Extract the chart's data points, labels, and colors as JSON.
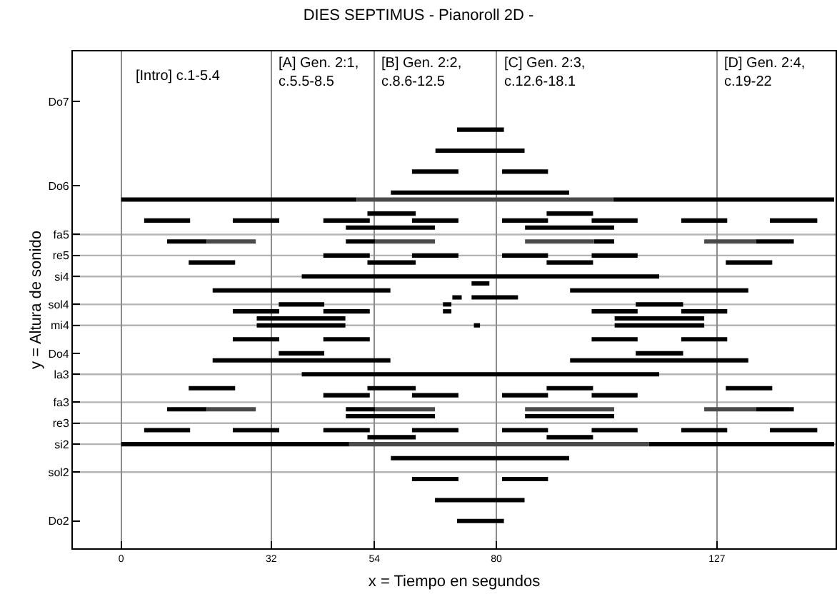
{
  "chart_data": {
    "type": "bar",
    "orientation": "horizontal",
    "title": "DIES SEPTIMUS - Pianoroll 2D -",
    "xlabel": "x = Tiempo en segundos",
    "ylabel": "y = Altura de sonido",
    "xlim": [
      -10.3,
      152.3
    ],
    "xticks": [
      0,
      32,
      54,
      80,
      127
    ],
    "categories": [
      "Do7",
      null,
      null,
      null,
      null,
      null,
      null,
      null,
      null,
      null,
      null,
      null,
      "Do6",
      null,
      null,
      null,
      null,
      null,
      null,
      "fa5",
      null,
      null,
      "re5",
      null,
      null,
      "si4",
      null,
      null,
      null,
      "sol4",
      null,
      null,
      "mi4",
      null,
      null,
      null,
      "Do4",
      null,
      null,
      "la3",
      null,
      null,
      null,
      "fa3",
      null,
      null,
      "re3",
      null,
      null,
      "si2",
      null,
      null,
      null,
      "sol2",
      null,
      null,
      null,
      null,
      null,
      null,
      "Do2"
    ],
    "grid": "x",
    "annotations": [
      "[Intro] c.1-5.4",
      "[A] Gen. 2:1,\nc.5.5-8.5",
      "[B] Gen. 2:2,\nc.8.6-12.5",
      "[C] Gen. 2:3,\nc.12.6-18.1",
      "[D] Gen. 2:4,\nc.19-22"
    ],
    "ref_lines": [
      {
        "axis": "y",
        "value": "sol2",
        "color": "#b4b4b4"
      },
      {
        "axis": "y",
        "value": "si2",
        "color": "#b4b4b4"
      },
      {
        "axis": "y",
        "value": "re3",
        "color": "#b4b4b4"
      },
      {
        "axis": "y",
        "value": "fa3",
        "color": "#b4b4b4"
      },
      {
        "axis": "y",
        "value": "la3",
        "color": "#b4b4b4"
      },
      {
        "axis": "y",
        "value": "mi4",
        "color": "#b4b4b4"
      },
      {
        "axis": "y",
        "value": "sol4",
        "color": "#b4b4b4"
      },
      {
        "axis": "y",
        "value": "si4",
        "color": "#b4b4b4"
      },
      {
        "axis": "y",
        "value": "re5",
        "color": "#b4b4b4"
      },
      {
        "axis": "y",
        "value": "fa5",
        "color": "#b4b4b4"
      }
    ],
    "series": [
      {
        "color": "#000000",
        "base": [
          null,
          null,
          null,
          null,
          71.6,
          null,
          null,
          67,
          null,
          null,
          62,
          null,
          null,
          57.5,
          0,
          null,
          52.5,
          4.9,
          47.9,
          null,
          9.8,
          null,
          43.1,
          14.4,
          null,
          38.5,
          74.7,
          19.5,
          70.6,
          33.6,
          23.8,
          28.9,
          28.9,
          null,
          23.8,
          null,
          33.6,
          19.5,
          null,
          38.5,
          null,
          14.4,
          43.1,
          null,
          9.8,
          47.9,
          null,
          4.9,
          52.5,
          0,
          null,
          57.5,
          null,
          null,
          62,
          null,
          null,
          66.9,
          null,
          null,
          71.6
        ],
        "values": [
          null,
          null,
          null,
          null,
          10,
          null,
          null,
          19,
          null,
          null,
          9.9,
          null,
          null,
          38,
          50.2,
          null,
          10.3,
          9.8,
          19,
          null,
          8.4,
          null,
          9.9,
          9.9,
          null,
          76.2,
          3.8,
          37.9,
          2,
          9.7,
          9.9,
          18.9,
          18.9,
          null,
          9.9,
          null,
          9.7,
          37.9,
          null,
          76.2,
          null,
          9.9,
          9.9,
          null,
          8.4,
          19,
          null,
          9.8,
          10.3,
          48.6,
          null,
          38,
          null,
          null,
          9.9,
          null,
          null,
          19.1,
          null,
          null,
          10
        ]
      },
      {
        "color": "#000000",
        "base": [
          null,
          null,
          null,
          null,
          null,
          null,
          null,
          null,
          null,
          null,
          81.2,
          null,
          null,
          null,
          104.9,
          null,
          90.7,
          23.8,
          86.1,
          null,
          47.9,
          null,
          62,
          52.5,
          null,
          null,
          null,
          95.7,
          74.7,
          68.6,
          43.1,
          105.2,
          75.2,
          null,
          43.1,
          null,
          109.7,
          95.7,
          null,
          null,
          null,
          52.5,
          62,
          null,
          47.9,
          86.1,
          null,
          23.8,
          90.7,
          112.5,
          null,
          null,
          null,
          null,
          81.2,
          null,
          null,
          null,
          null,
          null,
          null
        ],
        "values": [
          null,
          null,
          null,
          null,
          null,
          null,
          null,
          null,
          null,
          null,
          9.8,
          null,
          null,
          null,
          47.1,
          null,
          9.9,
          9.9,
          19,
          null,
          6.3,
          null,
          9.9,
          10.3,
          null,
          null,
          null,
          38,
          9.9,
          1.8,
          9.9,
          19.1,
          1.3,
          null,
          9.9,
          null,
          10.1,
          38,
          null,
          null,
          null,
          10.3,
          9.9,
          null,
          6.3,
          19,
          null,
          9.9,
          9.9,
          39.5,
          null,
          null,
          null,
          null,
          9.8,
          null,
          null,
          null,
          null,
          null,
          null
        ]
      },
      {
        "color": "#000000",
        "base": [
          null,
          null,
          null,
          null,
          null,
          null,
          null,
          null,
          null,
          null,
          null,
          null,
          null,
          null,
          null,
          null,
          null,
          43.1,
          null,
          null,
          100.8,
          null,
          81.2,
          90.7,
          null,
          null,
          null,
          null,
          null,
          109.7,
          68.6,
          null,
          105.2,
          null,
          100.3,
          null,
          null,
          null,
          null,
          null,
          null,
          90.7,
          81.2,
          null,
          135.3,
          null,
          null,
          43.1,
          null,
          null,
          null,
          null,
          null,
          null,
          null,
          null,
          null,
          null,
          null,
          null,
          null
        ],
        "values": [
          null,
          null,
          null,
          null,
          null,
          null,
          null,
          null,
          null,
          null,
          null,
          null,
          null,
          null,
          null,
          null,
          null,
          9.9,
          null,
          null,
          4.3,
          null,
          9.8,
          9.9,
          null,
          null,
          null,
          null,
          null,
          10.1,
          1.8,
          null,
          19.1,
          null,
          9.8,
          null,
          null,
          null,
          null,
          null,
          null,
          9.9,
          9.8,
          null,
          8.1,
          null,
          null,
          9.9,
          null,
          null,
          null,
          null,
          null,
          null,
          null,
          null,
          null,
          null,
          null,
          null,
          null
        ]
      },
      {
        "color": "#000000",
        "base": [
          null,
          null,
          null,
          null,
          null,
          null,
          null,
          null,
          null,
          null,
          null,
          null,
          null,
          null,
          null,
          null,
          null,
          62,
          null,
          null,
          135.3,
          null,
          100.3,
          128.9,
          null,
          null,
          null,
          null,
          null,
          null,
          100.3,
          null,
          null,
          null,
          119.4,
          null,
          null,
          null,
          null,
          null,
          null,
          128.9,
          100.3,
          null,
          null,
          null,
          null,
          62,
          null,
          null,
          null,
          null,
          null,
          null,
          null,
          null,
          null,
          null,
          null,
          null,
          null
        ],
        "values": [
          null,
          null,
          null,
          null,
          null,
          null,
          null,
          null,
          null,
          null,
          null,
          null,
          null,
          null,
          null,
          null,
          null,
          9.9,
          null,
          null,
          8.1,
          null,
          9.8,
          9.9,
          null,
          null,
          null,
          null,
          null,
          null,
          9.8,
          null,
          null,
          null,
          9.8,
          null,
          null,
          null,
          null,
          null,
          null,
          9.9,
          9.8,
          null,
          null,
          null,
          null,
          9.9,
          null,
          null,
          null,
          null,
          null,
          null,
          null,
          null,
          null,
          null,
          null,
          null,
          null
        ]
      },
      {
        "color": "#000000",
        "base": [
          null,
          null,
          null,
          null,
          null,
          null,
          null,
          null,
          null,
          null,
          null,
          null,
          null,
          null,
          null,
          null,
          null,
          81.2,
          null,
          null,
          null,
          null,
          null,
          null,
          null,
          null,
          null,
          null,
          null,
          null,
          119.4,
          null,
          null,
          null,
          null,
          null,
          null,
          null,
          null,
          null,
          null,
          null,
          null,
          null,
          null,
          null,
          null,
          81.2,
          null,
          null,
          null,
          null,
          null,
          null,
          null,
          null,
          null,
          null,
          null,
          null,
          null
        ],
        "values": [
          null,
          null,
          null,
          null,
          null,
          null,
          null,
          null,
          null,
          null,
          null,
          null,
          null,
          null,
          null,
          null,
          null,
          9.8,
          null,
          null,
          null,
          null,
          null,
          null,
          null,
          null,
          null,
          null,
          null,
          null,
          9.8,
          null,
          null,
          null,
          null,
          null,
          null,
          null,
          null,
          null,
          null,
          null,
          null,
          null,
          null,
          null,
          null,
          9.8,
          null,
          null,
          null,
          null,
          null,
          null,
          null,
          null,
          null,
          null,
          null,
          null,
          null
        ]
      },
      {
        "color": "#000000",
        "base": [
          null,
          null,
          null,
          null,
          null,
          null,
          null,
          null,
          null,
          null,
          null,
          null,
          null,
          null,
          null,
          null,
          null,
          100.3,
          null,
          null,
          null,
          null,
          null,
          null,
          null,
          null,
          null,
          null,
          null,
          null,
          null,
          null,
          null,
          null,
          null,
          null,
          null,
          null,
          null,
          null,
          null,
          null,
          null,
          null,
          null,
          null,
          null,
          100.3,
          null,
          null,
          null,
          null,
          null,
          null,
          null,
          null,
          null,
          null,
          null,
          null,
          null
        ],
        "values": [
          null,
          null,
          null,
          null,
          null,
          null,
          null,
          null,
          null,
          null,
          null,
          null,
          null,
          null,
          null,
          null,
          null,
          9.8,
          null,
          null,
          null,
          null,
          null,
          null,
          null,
          null,
          null,
          null,
          null,
          null,
          null,
          null,
          null,
          null,
          null,
          null,
          null,
          null,
          null,
          null,
          null,
          null,
          null,
          null,
          null,
          null,
          null,
          9.8,
          null,
          null,
          null,
          null,
          null,
          null,
          null,
          null,
          null,
          null,
          null,
          null,
          null
        ]
      },
      {
        "color": "#000000",
        "base": [
          null,
          null,
          null,
          null,
          null,
          null,
          null,
          null,
          null,
          null,
          null,
          null,
          null,
          null,
          null,
          null,
          null,
          119.4,
          null,
          null,
          null,
          null,
          null,
          null,
          null,
          null,
          null,
          null,
          null,
          null,
          null,
          null,
          null,
          null,
          null,
          null,
          null,
          null,
          null,
          null,
          null,
          null,
          null,
          null,
          null,
          null,
          null,
          119.4,
          null,
          null,
          null,
          null,
          null,
          null,
          null,
          null,
          null,
          null,
          null,
          null,
          null
        ],
        "values": [
          null,
          null,
          null,
          null,
          null,
          null,
          null,
          null,
          null,
          null,
          null,
          null,
          null,
          null,
          null,
          null,
          null,
          9.8,
          null,
          null,
          null,
          null,
          null,
          null,
          null,
          null,
          null,
          null,
          null,
          null,
          null,
          null,
          null,
          null,
          null,
          null,
          null,
          null,
          null,
          null,
          null,
          null,
          null,
          null,
          null,
          null,
          null,
          9.8,
          null,
          null,
          null,
          null,
          null,
          null,
          null,
          null,
          null,
          null,
          null,
          null,
          null
        ]
      },
      {
        "color": "#000000",
        "base": [
          null,
          null,
          null,
          null,
          null,
          null,
          null,
          null,
          null,
          null,
          null,
          null,
          null,
          null,
          null,
          null,
          null,
          138.3,
          null,
          null,
          null,
          null,
          null,
          null,
          null,
          null,
          null,
          null,
          null,
          null,
          null,
          null,
          null,
          null,
          null,
          null,
          null,
          null,
          null,
          null,
          null,
          null,
          null,
          null,
          null,
          null,
          null,
          138.3,
          null,
          null,
          null,
          null,
          null,
          null,
          null,
          null,
          null,
          null,
          null,
          null,
          null
        ],
        "values": [
          null,
          null,
          null,
          null,
          null,
          null,
          null,
          null,
          null,
          null,
          null,
          null,
          null,
          null,
          null,
          null,
          null,
          10.1,
          null,
          null,
          null,
          null,
          null,
          null,
          null,
          null,
          null,
          null,
          null,
          null,
          null,
          null,
          null,
          null,
          null,
          null,
          null,
          null,
          null,
          null,
          null,
          null,
          null,
          null,
          null,
          null,
          null,
          10.1,
          null,
          null,
          null,
          null,
          null,
          null,
          null,
          null,
          null,
          null,
          null,
          null,
          null
        ]
      },
      {
        "color": "#4a4a4a",
        "base": [
          null,
          null,
          null,
          null,
          null,
          null,
          null,
          null,
          null,
          null,
          null,
          null,
          null,
          null,
          50.2,
          null,
          null,
          null,
          null,
          null,
          18.2,
          null,
          null,
          null,
          null,
          null,
          null,
          null,
          null,
          null,
          null,
          null,
          null,
          null,
          null,
          null,
          null,
          null,
          null,
          null,
          null,
          null,
          null,
          null,
          18.2,
          null,
          null,
          null,
          null,
          48.6,
          null,
          null,
          null,
          null,
          null,
          null,
          null,
          null,
          null,
          null,
          null
        ],
        "values": [
          null,
          null,
          null,
          null,
          null,
          null,
          null,
          null,
          null,
          null,
          null,
          null,
          null,
          null,
          54.7,
          null,
          null,
          null,
          null,
          null,
          10.5,
          null,
          null,
          null,
          null,
          null,
          null,
          null,
          null,
          null,
          null,
          null,
          null,
          null,
          null,
          null,
          null,
          null,
          null,
          null,
          null,
          null,
          null,
          null,
          10.5,
          null,
          null,
          null,
          null,
          63.9,
          null,
          null,
          null,
          null,
          null,
          null,
          null,
          null,
          null,
          null,
          null
        ]
      },
      {
        "color": "#4a4a4a",
        "base": [
          null,
          null,
          null,
          null,
          null,
          null,
          null,
          null,
          null,
          null,
          null,
          null,
          null,
          null,
          null,
          null,
          null,
          null,
          null,
          null,
          54.2,
          null,
          null,
          null,
          null,
          null,
          null,
          null,
          null,
          null,
          null,
          null,
          null,
          null,
          null,
          null,
          null,
          null,
          null,
          null,
          null,
          null,
          null,
          null,
          54.2,
          null,
          null,
          null,
          null,
          null,
          null,
          null,
          null,
          null,
          null,
          null,
          null,
          null,
          null,
          null,
          null
        ],
        "values": [
          null,
          null,
          null,
          null,
          null,
          null,
          null,
          null,
          null,
          null,
          null,
          null,
          null,
          null,
          null,
          null,
          null,
          null,
          null,
          null,
          12.7,
          null,
          null,
          null,
          null,
          null,
          null,
          null,
          null,
          null,
          null,
          null,
          null,
          null,
          null,
          null,
          null,
          null,
          null,
          null,
          null,
          null,
          null,
          null,
          12.7,
          null,
          null,
          null,
          null,
          null,
          null,
          null,
          null,
          null,
          null,
          null,
          null,
          null,
          null,
          null,
          null
        ]
      },
      {
        "color": "#4a4a4a",
        "base": [
          null,
          null,
          null,
          null,
          null,
          null,
          null,
          null,
          null,
          null,
          null,
          null,
          null,
          null,
          null,
          null,
          null,
          null,
          null,
          null,
          86.1,
          null,
          null,
          null,
          null,
          null,
          null,
          null,
          null,
          null,
          null,
          null,
          null,
          null,
          null,
          null,
          null,
          null,
          null,
          null,
          null,
          null,
          null,
          null,
          86.1,
          null,
          null,
          null,
          null,
          null,
          null,
          null,
          null,
          null,
          null,
          null,
          null,
          null,
          null,
          null,
          null
        ],
        "values": [
          null,
          null,
          null,
          null,
          null,
          null,
          null,
          null,
          null,
          null,
          null,
          null,
          null,
          null,
          null,
          null,
          null,
          null,
          null,
          null,
          14.7,
          null,
          null,
          null,
          null,
          null,
          null,
          null,
          null,
          null,
          null,
          null,
          null,
          null,
          null,
          null,
          null,
          null,
          null,
          null,
          null,
          null,
          null,
          null,
          19,
          null,
          null,
          null,
          null,
          null,
          null,
          null,
          null,
          null,
          null,
          null,
          null,
          null,
          null,
          null,
          null
        ]
      },
      {
        "color": "#4a4a4a",
        "base": [
          null,
          null,
          null,
          null,
          null,
          null,
          null,
          null,
          null,
          null,
          null,
          null,
          null,
          null,
          null,
          null,
          null,
          null,
          null,
          null,
          124.3,
          null,
          null,
          null,
          null,
          null,
          null,
          null,
          null,
          null,
          null,
          null,
          null,
          null,
          null,
          null,
          null,
          null,
          null,
          null,
          null,
          null,
          null,
          null,
          124.3,
          null,
          null,
          null,
          null,
          null,
          null,
          null,
          null,
          null,
          null,
          null,
          null,
          null,
          null,
          null,
          null
        ],
        "values": [
          null,
          null,
          null,
          null,
          null,
          null,
          null,
          null,
          null,
          null,
          null,
          null,
          null,
          null,
          null,
          null,
          null,
          null,
          null,
          null,
          11,
          null,
          null,
          null,
          null,
          null,
          null,
          null,
          null,
          null,
          null,
          null,
          null,
          null,
          null,
          null,
          null,
          null,
          null,
          null,
          null,
          null,
          null,
          null,
          11,
          null,
          null,
          null,
          null,
          null,
          null,
          null,
          null,
          null,
          null,
          null,
          null,
          null,
          null,
          null,
          null
        ]
      }
    ]
  }
}
